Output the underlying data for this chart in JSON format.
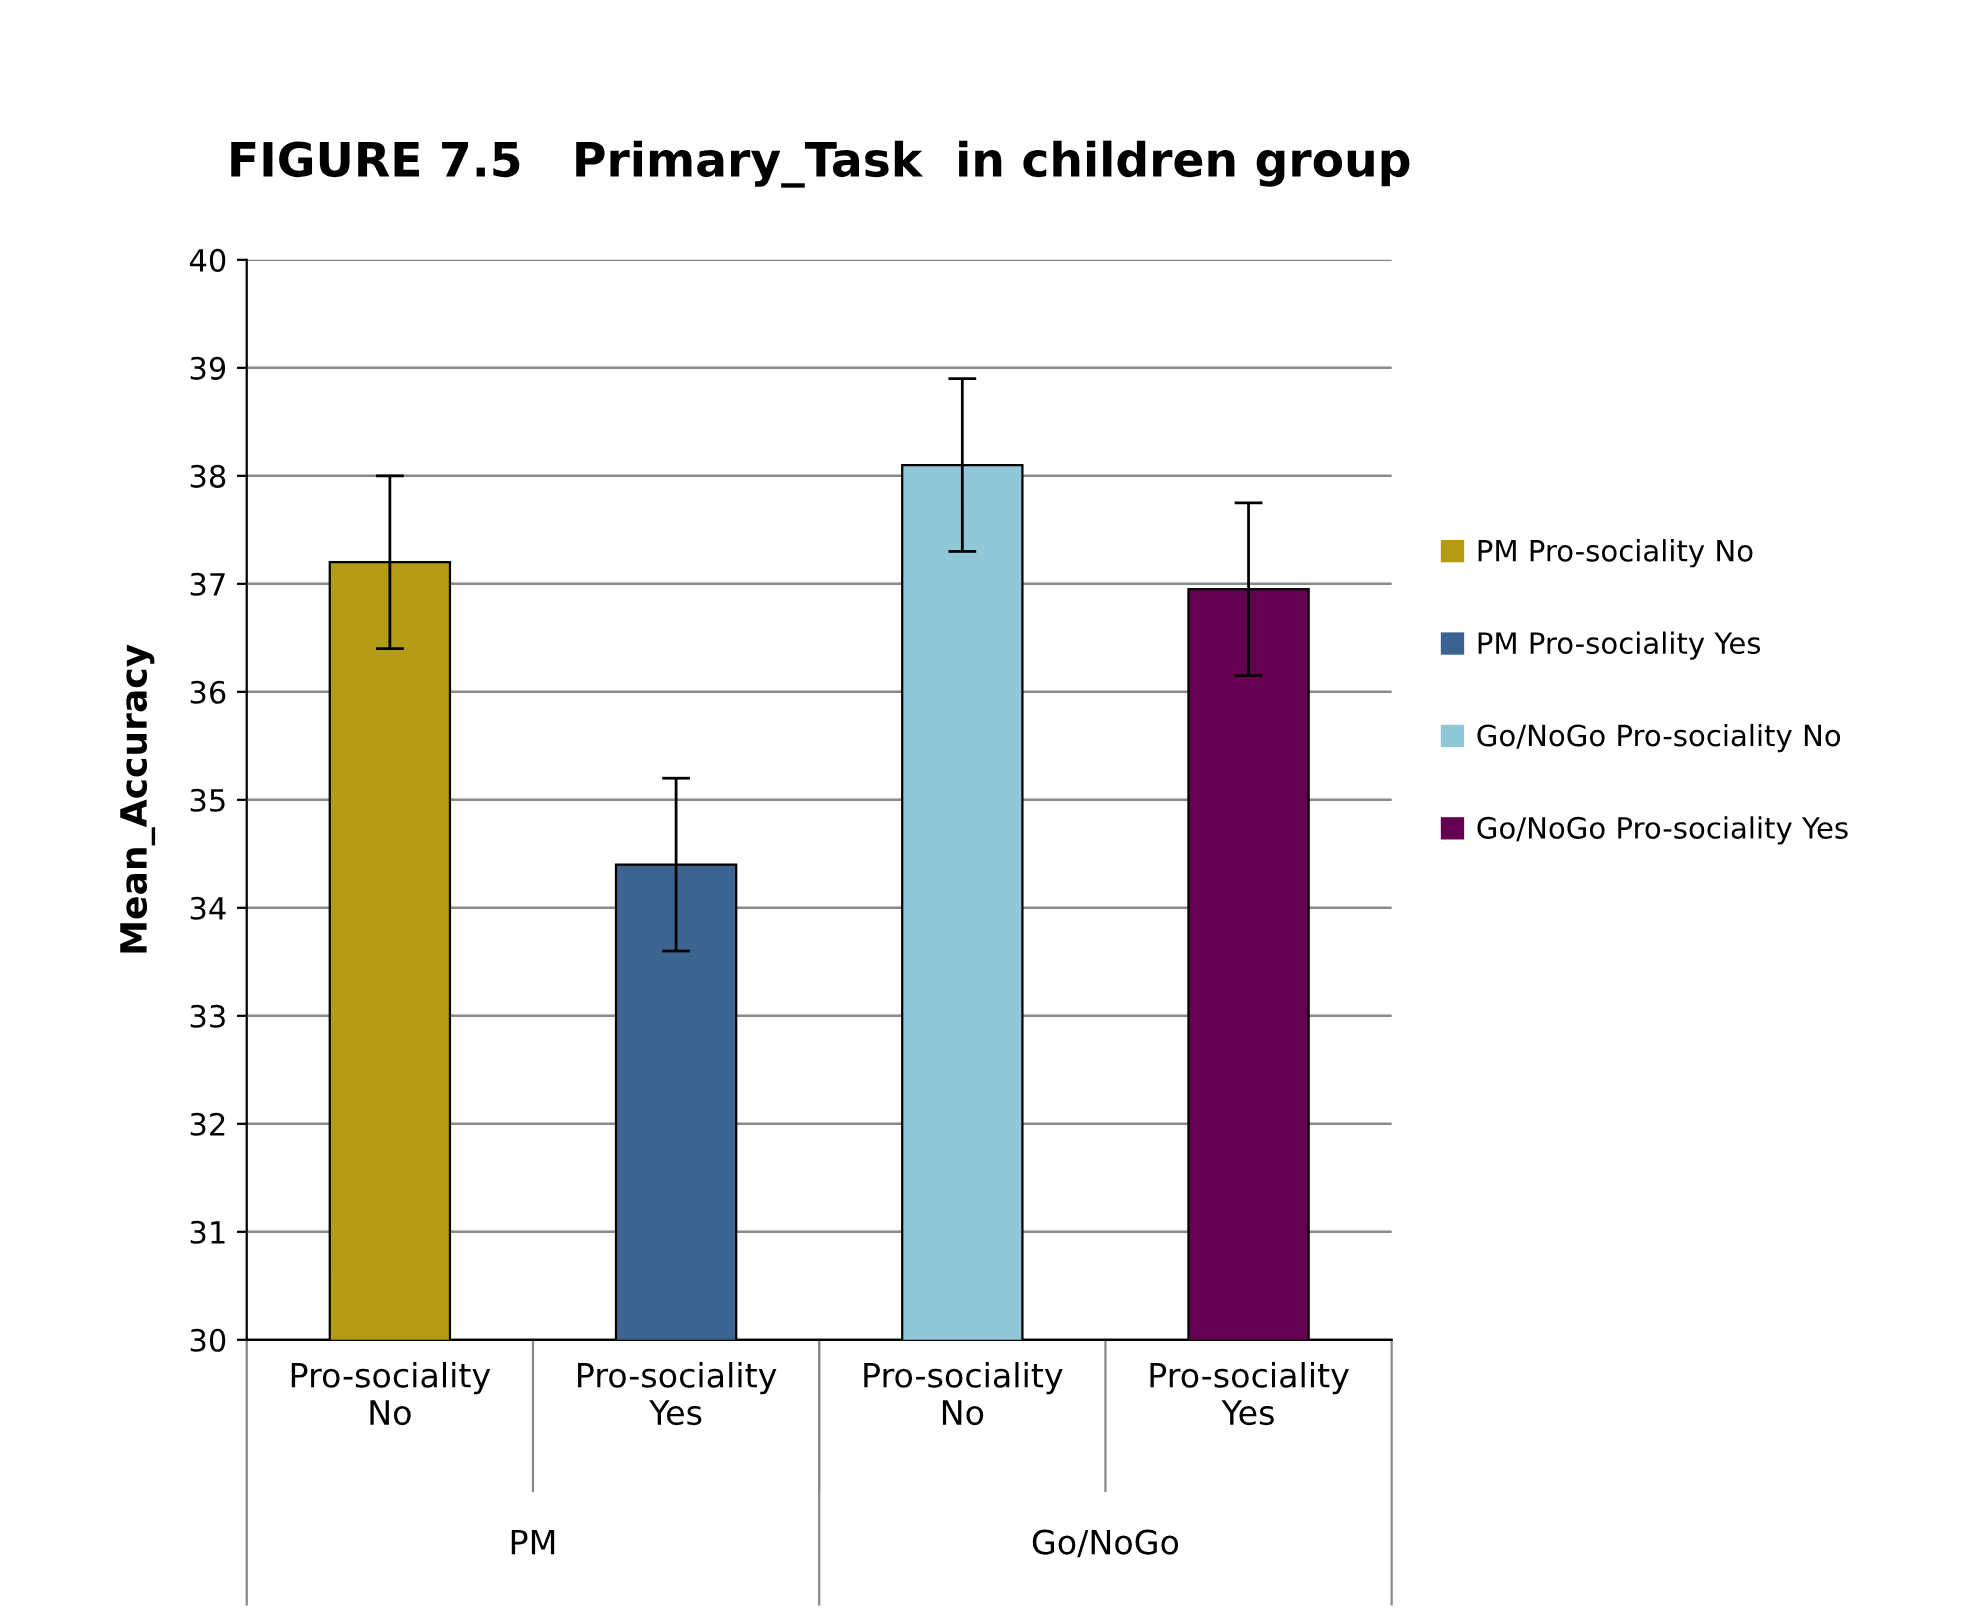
{
  "chart_data": {
    "type": "bar",
    "title": "FIGURE 7.5   Primary_Task  in children group",
    "ylabel": "Mean_Accuracy",
    "categories": [
      "Pro-sociality\nNo",
      "Pro-sociality\nYes",
      "Pro-sociality\nNo",
      "Pro-sociality\nYes"
    ],
    "series": [
      {
        "name": "PM Pro-sociality No",
        "color": "#b49b14",
        "values": [
          37.2,
          null,
          null,
          null
        ],
        "errors": [
          0.8,
          null,
          null,
          null
        ]
      },
      {
        "name": "PM Pro-sociality Yes",
        "color": "#3c6491",
        "values": [
          null,
          34.4,
          null,
          null
        ],
        "errors": [
          null,
          0.8,
          null,
          null
        ]
      },
      {
        "name": "Go/NoGo Pro-sociality No",
        "color": "#91c8d7",
        "values": [
          null,
          null,
          38.1,
          null
        ],
        "errors": [
          null,
          null,
          0.8,
          null
        ]
      },
      {
        "name": "Go/NoGo Pro-sociality Yes",
        "color": "#640050",
        "values": [
          null,
          null,
          null,
          36.95
        ],
        "errors": [
          null,
          null,
          null,
          0.8
        ]
      }
    ],
    "annotations": [
      "PM",
      "Go/NoGo"
    ],
    "ylim": [
      30,
      40
    ],
    "yticks": [
      30,
      31,
      32,
      33,
      34,
      35,
      36,
      37,
      38,
      39,
      40
    ],
    "grid": "y",
    "legend": "right"
  }
}
